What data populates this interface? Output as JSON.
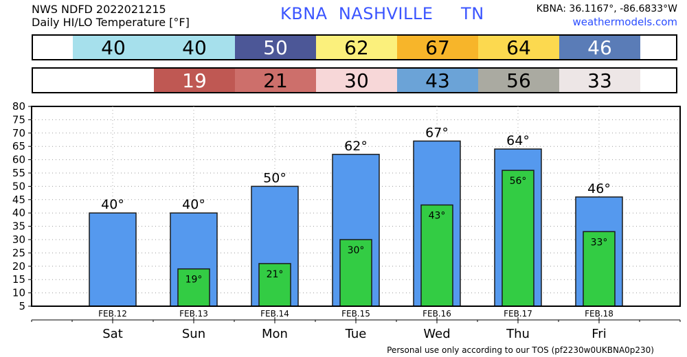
{
  "header": {
    "line1": "NWS NDFD 2022021215",
    "line2": "Daily HI/LO Temperature [°F]",
    "station": "KBNA  NASHVILLE     TN",
    "coords": "KBNA: 36.1167°, -86.6833°W",
    "site": "weathermodels.com"
  },
  "high_strip": [
    {
      "value": "40",
      "color": "#a6e0ec",
      "text_color": "#000000"
    },
    {
      "value": "40",
      "color": "#a6e0ec",
      "text_color": "#000000"
    },
    {
      "value": "50",
      "color": "#4c5797",
      "text_color": "#ffffff"
    },
    {
      "value": "62",
      "color": "#fbf07c",
      "text_color": "#000000"
    },
    {
      "value": "67",
      "color": "#f7b52a",
      "text_color": "#000000"
    },
    {
      "value": "64",
      "color": "#fcd94f",
      "text_color": "#000000"
    },
    {
      "value": "46",
      "color": "#5a7cb7",
      "text_color": "#ffffff"
    }
  ],
  "low_strip": [
    {
      "value": "19",
      "color": "#bf5853",
      "text_color": "#ffffff"
    },
    {
      "value": "21",
      "color": "#cd6f6b",
      "text_color": "#000000"
    },
    {
      "value": "30",
      "color": "#f7d7d8",
      "text_color": "#000000"
    },
    {
      "value": "43",
      "color": "#6ba3d7",
      "text_color": "#000000"
    },
    {
      "value": "56",
      "color": "#aaaaa1",
      "text_color": "#000000"
    },
    {
      "value": "33",
      "color": "#ede6e6",
      "text_color": "#000000"
    }
  ],
  "chart_data": {
    "type": "bar",
    "categories": [
      "Sat",
      "Sun",
      "Mon",
      "Tue",
      "Wed",
      "Thu",
      "Fri"
    ],
    "dates": [
      "FEB.12",
      "FEB.13",
      "FEB.14",
      "FEB.15",
      "FEB.16",
      "FEB.17",
      "FEB.18"
    ],
    "series": [
      {
        "values": [
          40,
          40,
          50,
          62,
          67,
          64,
          46
        ],
        "color": "#5599ee",
        "labels": [
          "40°",
          "40°",
          "50°",
          "62°",
          "67°",
          "64°",
          "46°"
        ]
      },
      {
        "values": [
          null,
          19,
          21,
          30,
          43,
          56,
          33
        ],
        "color": "#33cc44",
        "labels": [
          "",
          "19°",
          "21°",
          "30°",
          "43°",
          "56°",
          "33°"
        ]
      }
    ],
    "ylim": [
      5,
      80
    ],
    "yticks": [
      "5",
      "10",
      "15",
      "20",
      "25",
      "30",
      "35",
      "40",
      "45",
      "50",
      "55",
      "60",
      "65",
      "70",
      "75",
      "80"
    ],
    "grid": true
  },
  "footer": "Personal use only according to our TOS (pf2230w0UKBNA0p230)"
}
